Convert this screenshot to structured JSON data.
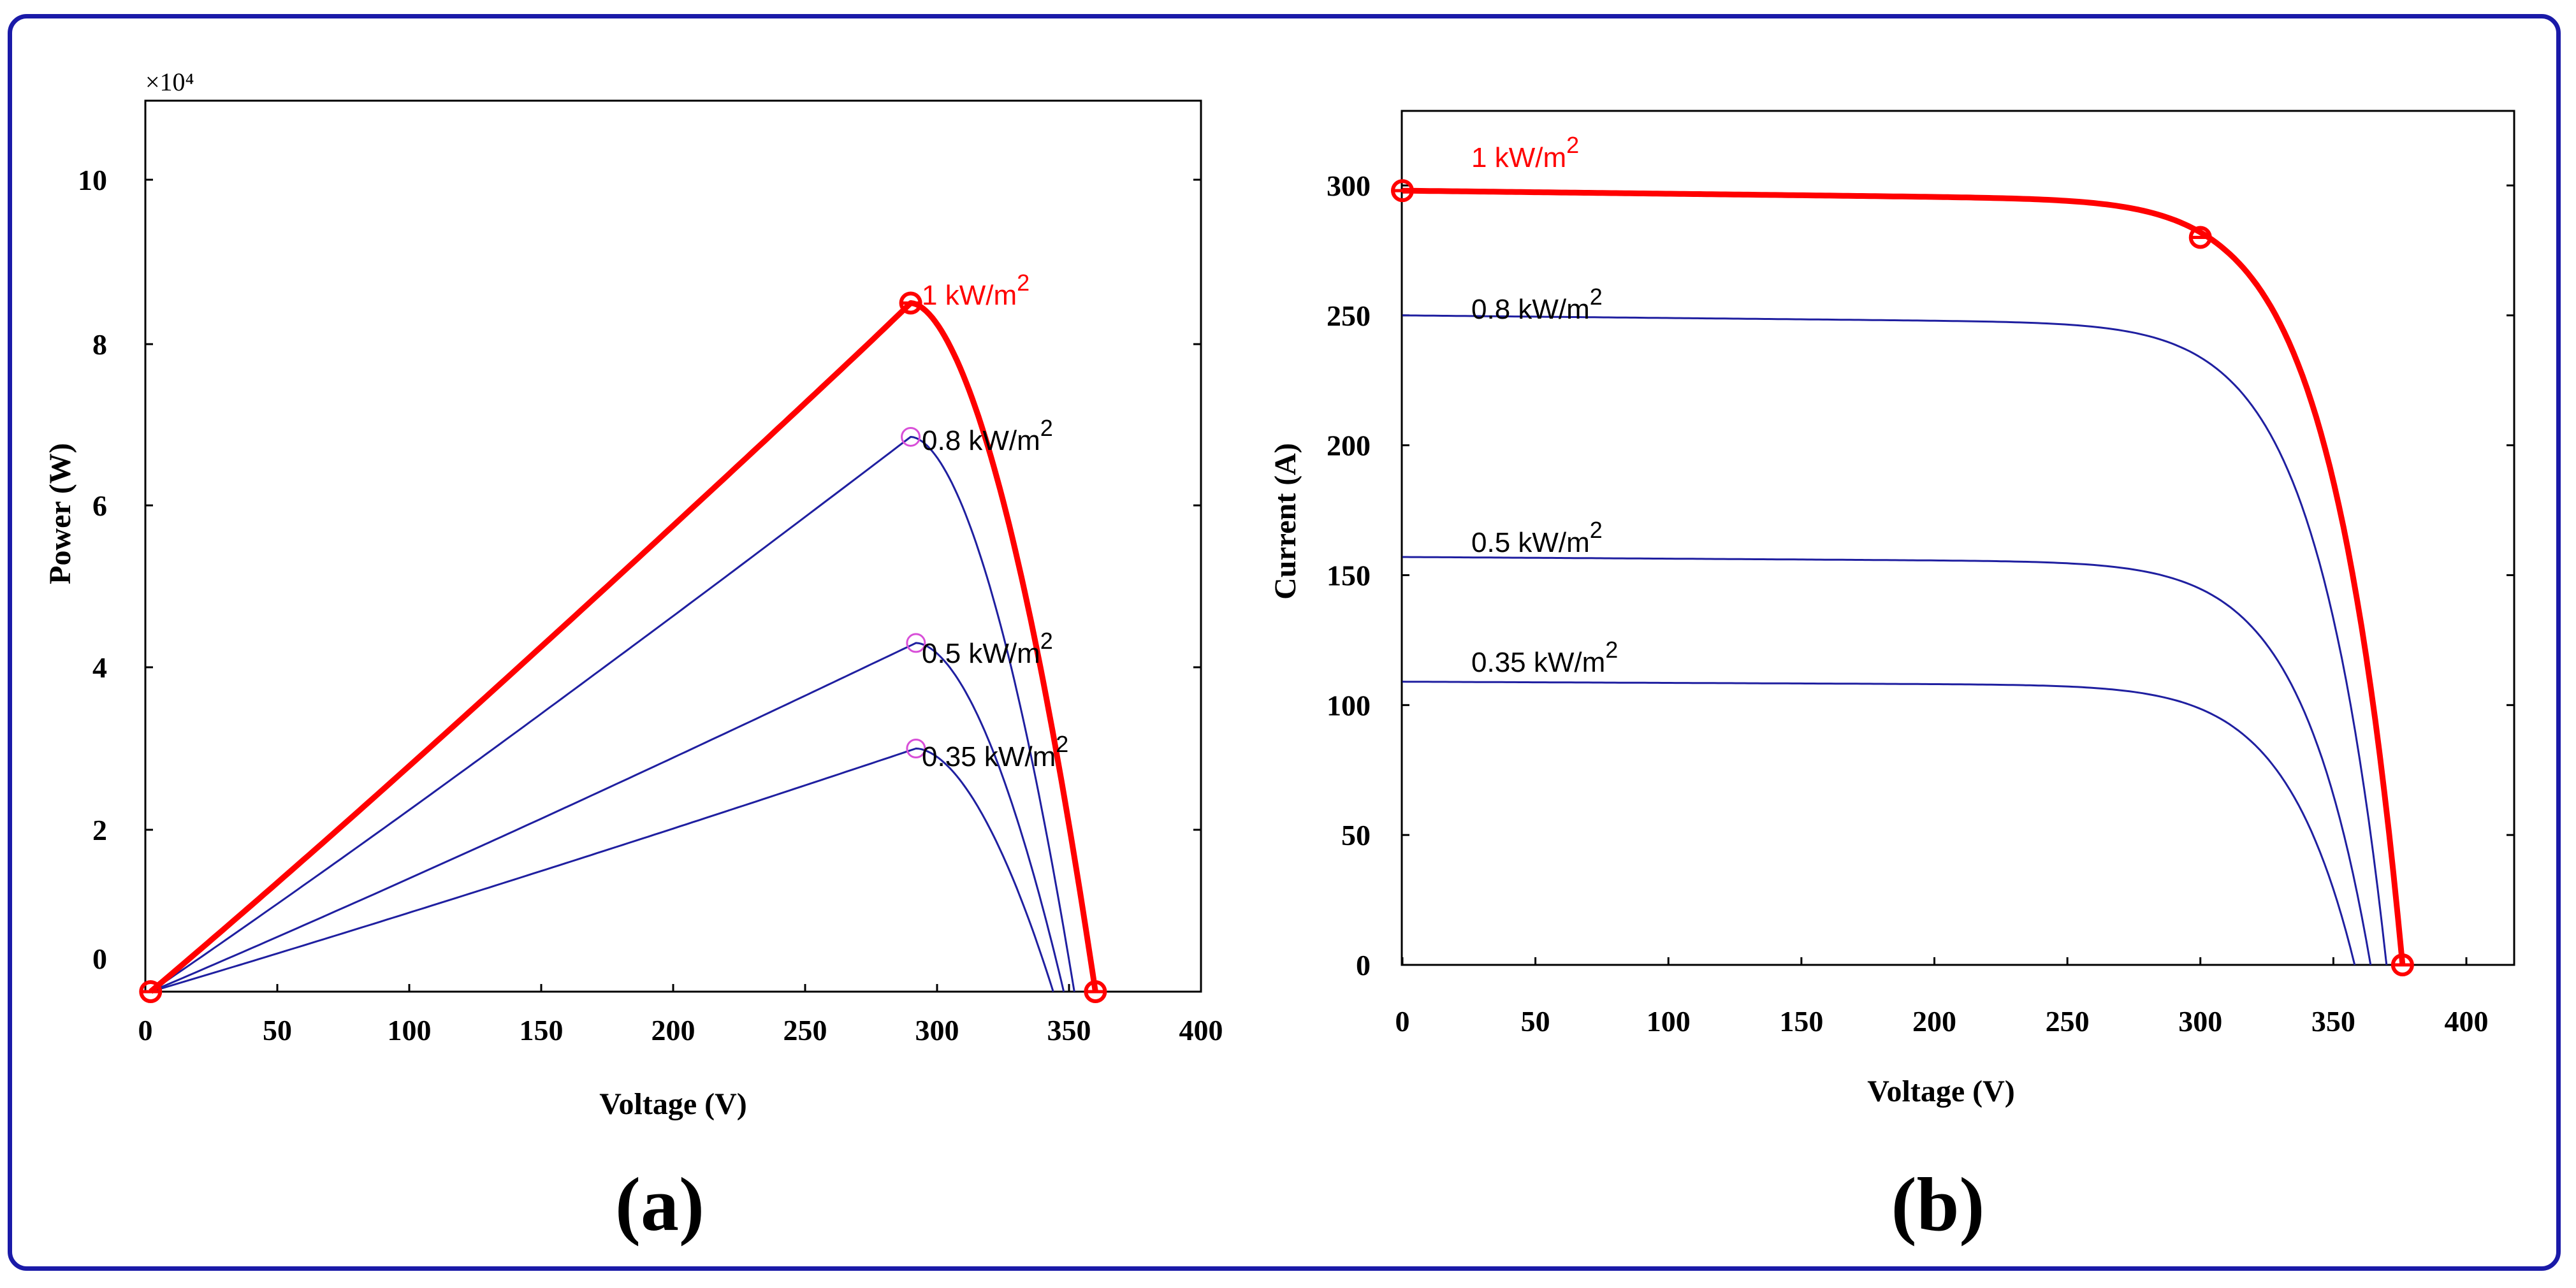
{
  "chart_data": [
    {
      "type": "line",
      "panel_label": "(a)",
      "xlabel": "Voltage (V)",
      "ylabel": "Power (W)",
      "y_exponent": "×10⁴",
      "xlim": [
        0,
        400
      ],
      "ylim": [
        -0.5,
        11
      ],
      "xticks": [
        0,
        50,
        100,
        150,
        200,
        250,
        300,
        350,
        400
      ],
      "xtick_labels": [
        "0",
        "50",
        "100",
        "150",
        "200",
        "250",
        "300",
        "350",
        "400"
      ],
      "yticks": [
        0,
        2,
        4,
        6,
        8,
        10
      ],
      "ytick_labels": [
        "0",
        "2",
        "4",
        "6",
        "8",
        "10"
      ],
      "series": [
        {
          "name": "1 kW/m2",
          "label_text": "1 kW/m",
          "label_sup": "2",
          "color": "#ff0000",
          "highlight": true,
          "Vmp": 290,
          "Voc": 360,
          "peak": 8.5,
          "markers": [
            {
              "x": 2,
              "y": -0.5
            },
            {
              "x": 290,
              "y": 8.5
            },
            {
              "x": 360,
              "y": -0.5
            }
          ]
        },
        {
          "name": "0.8 kW/m2",
          "label_text": "0.8 kW/m",
          "label_sup": "2",
          "color": "#1f1fa0",
          "highlight": false,
          "Vmp": 290,
          "Voc": 352,
          "peak": 6.85,
          "markers": [
            {
              "x": 290,
              "y": 6.85
            }
          ]
        },
        {
          "name": "0.5 kW/m2",
          "label_text": "0.5 kW/m",
          "label_sup": "2",
          "color": "#1f1fa0",
          "highlight": false,
          "Vmp": 292,
          "Voc": 348,
          "peak": 4.3,
          "markers": [
            {
              "x": 292,
              "y": 4.3
            }
          ]
        },
        {
          "name": "0.35 kW/m2",
          "label_text": "0.35 kW/m",
          "label_sup": "2",
          "color": "#1f1fa0",
          "highlight": false,
          "Vmp": 292,
          "Voc": 344,
          "peak": 3.0,
          "markers": [
            {
              "x": 292,
              "y": 3.0
            }
          ]
        }
      ]
    },
    {
      "type": "line",
      "panel_label": "(b)",
      "xlabel": "Voltage (V)",
      "ylabel": "Current (A)",
      "xlim": [
        0,
        400
      ],
      "ylim": [
        0,
        320
      ],
      "xticks": [
        0,
        50,
        100,
        150,
        200,
        250,
        300,
        350,
        400
      ],
      "xtick_labels": [
        "0",
        "50",
        "100",
        "150",
        "200",
        "250",
        "300",
        "350",
        "400"
      ],
      "yticks": [
        0,
        50,
        100,
        150,
        200,
        250,
        300
      ],
      "ytick_labels": [
        "0",
        "50",
        "100",
        "150",
        "200",
        "250",
        "300"
      ],
      "series": [
        {
          "name": "1 kW/m2",
          "label_text": "1 kW/m",
          "label_sup": "2",
          "color": "#ff0000",
          "highlight": true,
          "Isc": 298,
          "Voc": 376,
          "knee": 300,
          "markers": [
            {
              "x": 0,
              "y": 298
            },
            {
              "x": 300,
              "y": 280
            },
            {
              "x": 376,
              "y": 0
            }
          ]
        },
        {
          "name": "0.8 kW/m2",
          "label_text": "0.8 kW/m",
          "label_sup": "2",
          "color": "#1f1fa0",
          "highlight": false,
          "Isc": 250,
          "Voc": 370,
          "knee": 300,
          "markers": []
        },
        {
          "name": "0.5 kW/m2",
          "label_text": "0.5 kW/m",
          "label_sup": "2",
          "color": "#1f1fa0",
          "highlight": false,
          "Isc": 157,
          "Voc": 364,
          "knee": 300,
          "markers": []
        },
        {
          "name": "0.35 kW/m2",
          "label_text": "0.35 kW/m",
          "label_sup": "2",
          "color": "#1f1fa0",
          "highlight": false,
          "Isc": 109,
          "Voc": 358,
          "knee": 300,
          "markers": []
        }
      ]
    }
  ]
}
